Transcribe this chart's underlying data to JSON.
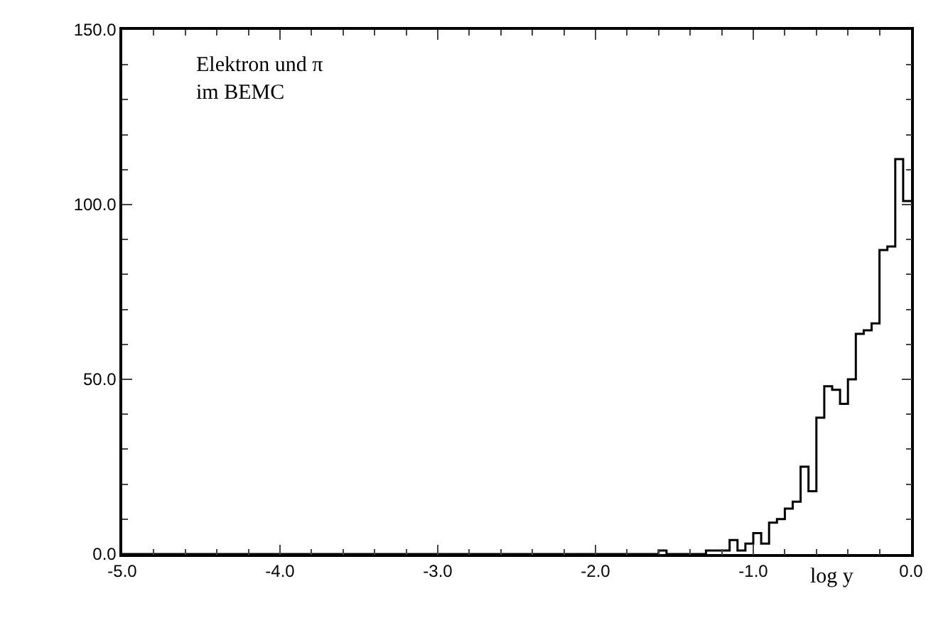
{
  "chart_data": {
    "type": "histogram",
    "xlabel": "log y",
    "annotations": [
      "Elektron und π\nim BEMC"
    ],
    "bins": [
      -5.0,
      -4.95,
      -4.9,
      -4.85,
      -4.8,
      -4.75,
      -4.7,
      -4.65,
      -4.6,
      -4.55,
      -4.5,
      -4.45,
      -4.4,
      -4.35,
      -4.3,
      -4.25,
      -4.2,
      -4.15,
      -4.1,
      -4.05,
      -4.0,
      -3.95,
      -3.9,
      -3.85,
      -3.8,
      -3.75,
      -3.7,
      -3.65,
      -3.6,
      -3.55,
      -3.5,
      -3.45,
      -3.4,
      -3.35,
      -3.3,
      -3.25,
      -3.2,
      -3.15,
      -3.1,
      -3.05,
      -3.0,
      -2.95,
      -2.9,
      -2.85,
      -2.8,
      -2.75,
      -2.7,
      -2.65,
      -2.6,
      -2.55,
      -2.5,
      -2.45,
      -2.4,
      -2.35,
      -2.3,
      -2.25,
      -2.2,
      -2.15,
      -2.1,
      -2.05,
      -2.0,
      -1.95,
      -1.9,
      -1.85,
      -1.8,
      -1.75,
      -1.7,
      -1.65,
      -1.6,
      -1.55,
      -1.5,
      -1.45,
      -1.4,
      -1.35,
      -1.3,
      -1.25,
      -1.2,
      -1.15,
      -1.1,
      -1.05,
      -1.0,
      -0.95,
      -0.9,
      -0.85,
      -0.8,
      -0.75,
      -0.7,
      -0.65,
      -0.6,
      -0.55,
      -0.5,
      -0.45,
      -0.4,
      -0.35,
      -0.3,
      -0.25,
      -0.2,
      -0.15,
      -0.1,
      -0.05,
      0.0
    ],
    "values": [
      0,
      0,
      0,
      0,
      0,
      0,
      0,
      0,
      0,
      0,
      0,
      0,
      0,
      0,
      0,
      0,
      0,
      0,
      0,
      0,
      0,
      0,
      0,
      0,
      0,
      0,
      0,
      0,
      0,
      0,
      0,
      0,
      0,
      0,
      0,
      0,
      0,
      0,
      0,
      0,
      0,
      0,
      0,
      0,
      0,
      0,
      0,
      0,
      0,
      0,
      0,
      0,
      0,
      0,
      0,
      0,
      0,
      0,
      0,
      0,
      0,
      0,
      0,
      0,
      0,
      0,
      0,
      0,
      1,
      0,
      0,
      0,
      0,
      0,
      1,
      1,
      1,
      4,
      1,
      3,
      6,
      3,
      9,
      10,
      13,
      15,
      25,
      18,
      39,
      48,
      47,
      43,
      50,
      63,
      64,
      66,
      87,
      88,
      113,
      101
    ],
    "color": "#000000",
    "xlim": [
      -5.0,
      0.0
    ],
    "ylim": [
      0,
      150
    ],
    "xticks": [
      {
        "value": -5,
        "label": "-5.0"
      },
      {
        "value": -4,
        "label": "-4.0"
      },
      {
        "value": -3,
        "label": "-3.0"
      },
      {
        "value": -2,
        "label": "-2.0"
      },
      {
        "value": -1,
        "label": "-1.0"
      },
      {
        "value": 0,
        "label": "0.0"
      }
    ],
    "yticks": [
      {
        "value": 0,
        "label": "0.0"
      },
      {
        "value": 50,
        "label": "50.0"
      },
      {
        "value": 100,
        "label": "100.0"
      },
      {
        "value": 150,
        "label": "150.0"
      }
    ]
  }
}
